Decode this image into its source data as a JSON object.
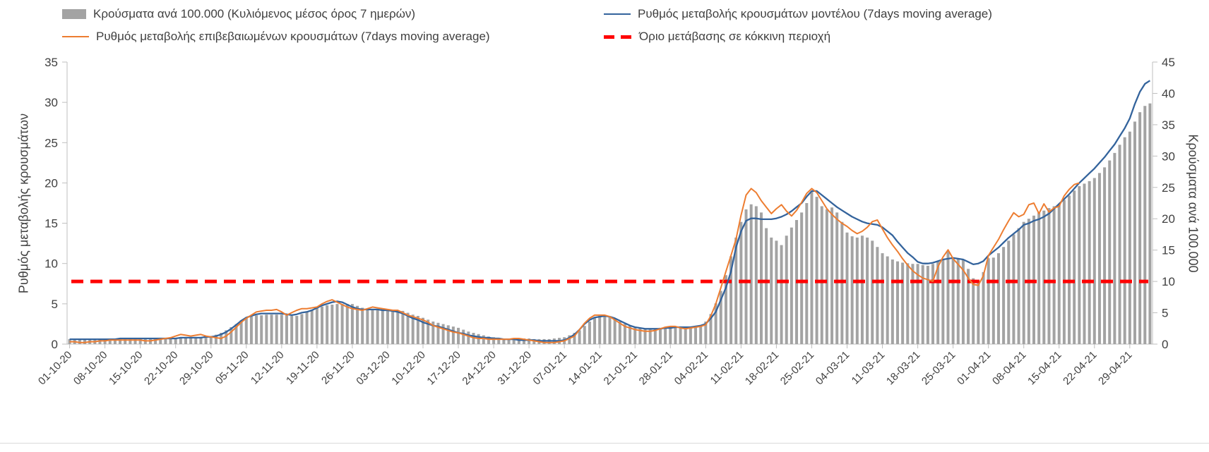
{
  "legend": {
    "items": [
      {
        "label": "Κρούσματα ανά 100.000 (Κυλιόμενος μέσος όρος 7 ημερών)",
        "swatch": "bar",
        "color": "#a3a3a3"
      },
      {
        "label": "Ρυθμός μεταβολής κρουσμάτων μοντέλου (7days moving average)",
        "swatch": "line",
        "color": "#33639c"
      },
      {
        "label": "Ρυθμός μεταβολής επιβεβαιωμένων κρουσμάτων (7days moving average)",
        "swatch": "line",
        "color": "#ed7d31"
      },
      {
        "label": "Όριο μετάβασης σε κόκκινη περιοχή",
        "swatch": "dashed",
        "color": "#ff0000"
      }
    ]
  },
  "chart_data": {
    "type": "combo-bar-line",
    "title": "",
    "start_date": "01-10-20",
    "days_per_point": 1,
    "left_axis": {
      "label": "Ρυθμός μεταβολής κρουσμάτων",
      "min": 0,
      "max": 35,
      "ticks": [
        0,
        5,
        10,
        15,
        20,
        25,
        30,
        35
      ]
    },
    "right_axis": {
      "label": "Κρούσματα ανά 100.000",
      "min": 0,
      "max": 45,
      "ticks": [
        0,
        5,
        10,
        15,
        20,
        25,
        30,
        35,
        40,
        45
      ]
    },
    "x_tick_labels": [
      "01-10-20",
      "08-10-20",
      "15-10-20",
      "22-10-20",
      "29-10-20",
      "05-11-20",
      "12-11-20",
      "19-11-20",
      "26-11-20",
      "03-12-20",
      "10-12-20",
      "17-12-20",
      "24-12-20",
      "31-12-20",
      "07-01-21",
      "14-01-21",
      "21-01-21",
      "28-01-21",
      "04-02-21",
      "11-02-21",
      "18-02-21",
      "25-02-21",
      "04-03-21",
      "11-03-21",
      "18-03-21",
      "25-03-21",
      "01-04-21",
      "08-04-21",
      "15-04-21",
      "22-04-21",
      "29-04-21"
    ],
    "grid": false,
    "legend_position": "top",
    "series": [
      {
        "name": "Κρούσματα ανά 100.000 (Κυλιόμενος μέσος όρος 7 ημερών)",
        "type": "bar",
        "axis": "right",
        "color": "#a3a3a3",
        "values": [
          0.8,
          0.8,
          0.8,
          0.8,
          0.8,
          0.8,
          0.8,
          0.8,
          0.8,
          0.8,
          0.9,
          0.9,
          0.9,
          0.9,
          0.9,
          0.9,
          0.9,
          1.0,
          1.0,
          1.0,
          1.0,
          1.0,
          1.1,
          1.1,
          1.0,
          1.0,
          1.1,
          1.2,
          1.3,
          1.5,
          1.8,
          2.2,
          2.7,
          3.2,
          3.8,
          4.3,
          4.4,
          4.6,
          4.6,
          4.7,
          4.7,
          4.7,
          4.7,
          4.6,
          4.5,
          4.5,
          4.8,
          5.2,
          5.5,
          5.8,
          6.0,
          6.2,
          6.3,
          6.4,
          6.4,
          6.4,
          6.4,
          6.1,
          5.8,
          5.6,
          5.6,
          5.6,
          5.6,
          5.6,
          5.5,
          5.4,
          5.3,
          5.0,
          4.7,
          4.5,
          4.2,
          3.9,
          3.6,
          3.4,
          3.2,
          3.0,
          2.8,
          2.6,
          2.3,
          2.0,
          1.8,
          1.6,
          1.4,
          1.2,
          1.1,
          1.0,
          0.9,
          0.9,
          0.9,
          0.9,
          0.9,
          0.9,
          0.8,
          0.8,
          0.8,
          0.8,
          0.9,
          1.0,
          1.1,
          1.4,
          1.8,
          2.2,
          2.9,
          3.6,
          4.2,
          4.5,
          4.4,
          4.3,
          4.0,
          3.6,
          3.2,
          2.9,
          2.6,
          2.5,
          2.4,
          2.4,
          2.5,
          2.6,
          2.7,
          2.8,
          2.8,
          2.7,
          2.7,
          2.8,
          2.9,
          3.0,
          3.6,
          4.8,
          6.5,
          8.5,
          11.0,
          14.0,
          17.0,
          19.5,
          21.5,
          22.3,
          22.0,
          21.0,
          18.5,
          17.0,
          16.5,
          15.8,
          17.3,
          18.6,
          19.8,
          21.0,
          22.5,
          24.3,
          23.5,
          22.0,
          21.5,
          21.8,
          21.0,
          19.5,
          17.8,
          17.2,
          17.0,
          17.3,
          17.0,
          16.5,
          15.5,
          14.5,
          14.0,
          13.5,
          13.2,
          13.0,
          12.9,
          12.8,
          12.8,
          12.6,
          12.5,
          12.8,
          13.2,
          13.6,
          14.8,
          13.8,
          13.7,
          13.5,
          12.0,
          10.5,
          9.8,
          11.5,
          13.7,
          13.8,
          14.5,
          15.5,
          16.5,
          17.5,
          18.5,
          19.5,
          20.0,
          20.5,
          21.0,
          21.3,
          21.7,
          22.0,
          22.3,
          23.0,
          23.7,
          24.5,
          25.2,
          25.6,
          26.0,
          26.5,
          27.3,
          28.2,
          29.3,
          30.5,
          31.8,
          33.0,
          33.9,
          35.5,
          37.0,
          38.0,
          38.4
        ]
      },
      {
        "name": "Ρυθμός μεταβολής κρουσμάτων μοντέλου (7days moving average)",
        "type": "line",
        "axis": "left",
        "color": "#33639c",
        "values": [
          0.6,
          0.6,
          0.6,
          0.6,
          0.6,
          0.6,
          0.6,
          0.6,
          0.6,
          0.6,
          0.7,
          0.7,
          0.7,
          0.7,
          0.7,
          0.7,
          0.7,
          0.7,
          0.7,
          0.7,
          0.7,
          0.7,
          0.8,
          0.8,
          0.8,
          0.8,
          0.8,
          0.9,
          0.9,
          1.0,
          1.2,
          1.5,
          1.9,
          2.4,
          2.9,
          3.3,
          3.5,
          3.7,
          3.8,
          3.8,
          3.8,
          3.8,
          3.8,
          3.7,
          3.6,
          3.7,
          3.9,
          4.0,
          4.2,
          4.5,
          4.8,
          5.0,
          5.2,
          5.3,
          5.2,
          4.9,
          4.6,
          4.4,
          4.3,
          4.3,
          4.3,
          4.3,
          4.2,
          4.2,
          4.1,
          4.0,
          3.8,
          3.5,
          3.2,
          3.0,
          2.7,
          2.5,
          2.3,
          2.2,
          2.0,
          1.8,
          1.6,
          1.4,
          1.3,
          1.1,
          1.0,
          0.9,
          0.8,
          0.8,
          0.7,
          0.7,
          0.6,
          0.6,
          0.6,
          0.5,
          0.5,
          0.5,
          0.5,
          0.4,
          0.4,
          0.4,
          0.4,
          0.4,
          0.5,
          0.8,
          1.2,
          1.8,
          2.5,
          3.0,
          3.3,
          3.4,
          3.5,
          3.4,
          3.2,
          2.9,
          2.6,
          2.3,
          2.1,
          2.0,
          1.9,
          1.9,
          1.9,
          1.9,
          2.0,
          2.0,
          2.1,
          2.1,
          2.1,
          2.1,
          2.2,
          2.3,
          2.5,
          3.2,
          4.0,
          5.5,
          7.0,
          9.0,
          12.0,
          14.0,
          15.3,
          15.6,
          15.6,
          15.5,
          15.5,
          15.5,
          15.6,
          15.8,
          16.1,
          16.5,
          17.0,
          17.5,
          18.3,
          19.0,
          19.0,
          18.5,
          18.0,
          17.5,
          17.0,
          16.6,
          16.2,
          15.8,
          15.5,
          15.2,
          15.0,
          14.9,
          14.8,
          14.5,
          14.0,
          13.5,
          12.7,
          12.0,
          11.3,
          10.8,
          10.2,
          10.0,
          10.0,
          10.1,
          10.3,
          10.5,
          10.6,
          10.7,
          10.6,
          10.5,
          10.2,
          9.9,
          10.0,
          10.3,
          11.0,
          11.5,
          12.0,
          12.6,
          13.2,
          13.7,
          14.2,
          14.8,
          15.0,
          15.3,
          15.5,
          15.8,
          16.2,
          16.8,
          17.4,
          18.0,
          18.6,
          19.3,
          20.0,
          20.6,
          21.2,
          21.8,
          22.5,
          23.2,
          24.0,
          24.8,
          25.8,
          26.8,
          28.0,
          29.8,
          31.3,
          32.3,
          32.7
        ]
      },
      {
        "name": "Ρυθμός μεταβολής επιβεβαιωμένων κρουσμάτων (7days moving average)",
        "type": "line",
        "axis": "left",
        "color": "#ed7d31",
        "values": [
          0.3,
          0.3,
          0.2,
          0.2,
          0.3,
          0.3,
          0.4,
          0.4,
          0.5,
          0.5,
          0.5,
          0.5,
          0.5,
          0.5,
          0.5,
          0.4,
          0.4,
          0.5,
          0.6,
          0.7,
          0.8,
          1.0,
          1.2,
          1.1,
          1.0,
          1.1,
          1.2,
          1.0,
          0.9,
          0.8,
          0.7,
          1.0,
          1.5,
          2.1,
          2.7,
          3.2,
          3.6,
          4.0,
          4.1,
          4.2,
          4.2,
          4.3,
          4.0,
          3.6,
          3.9,
          4.2,
          4.4,
          4.4,
          4.5,
          4.6,
          5.0,
          5.3,
          5.5,
          5.2,
          4.9,
          4.6,
          4.4,
          4.3,
          4.2,
          4.4,
          4.6,
          4.5,
          4.4,
          4.3,
          4.2,
          4.2,
          3.9,
          3.6,
          3.4,
          3.2,
          3.0,
          2.7,
          2.3,
          2.1,
          1.9,
          1.7,
          1.5,
          1.4,
          1.2,
          1.0,
          0.8,
          0.7,
          0.7,
          0.6,
          0.6,
          0.6,
          0.6,
          0.6,
          0.7,
          0.7,
          0.6,
          0.5,
          0.4,
          0.3,
          0.2,
          0.2,
          0.2,
          0.3,
          0.4,
          0.7,
          1.0,
          1.8,
          2.6,
          3.2,
          3.6,
          3.6,
          3.6,
          3.4,
          3.0,
          2.6,
          2.2,
          2.0,
          1.8,
          1.7,
          1.6,
          1.6,
          1.7,
          1.9,
          2.1,
          2.2,
          2.2,
          2.0,
          1.9,
          2.0,
          2.1,
          2.2,
          2.4,
          3.5,
          5.0,
          7.0,
          9.0,
          11.0,
          13.0,
          16.0,
          18.5,
          19.3,
          18.8,
          17.8,
          17.0,
          16.2,
          16.8,
          17.3,
          16.5,
          15.9,
          16.6,
          17.6,
          18.7,
          19.3,
          18.8,
          17.8,
          16.8,
          16.1,
          15.5,
          15.0,
          14.6,
          14.1,
          13.7,
          14.0,
          14.5,
          15.2,
          15.4,
          14.3,
          13.2,
          12.3,
          11.5,
          10.6,
          9.8,
          9.1,
          8.6,
          8.2,
          8.0,
          7.8,
          9.6,
          10.8,
          11.7,
          10.6,
          9.9,
          9.2,
          8.2,
          7.4,
          7.3,
          8.5,
          11.0,
          12.0,
          13.0,
          14.2,
          15.3,
          16.3,
          15.8,
          16.1,
          17.3,
          17.5,
          16.2,
          17.4,
          16.4,
          16.9,
          17.1,
          18.4,
          19.2,
          19.8,
          20.0,
          null,
          null,
          null,
          null,
          null,
          null,
          null,
          null,
          null,
          null,
          null,
          null,
          null,
          null
        ]
      },
      {
        "name": "Όριο μετάβασης σε κόκκινη περιοχή",
        "type": "threshold",
        "axis": "right",
        "color": "#ff0000",
        "value": 10
      }
    ]
  }
}
